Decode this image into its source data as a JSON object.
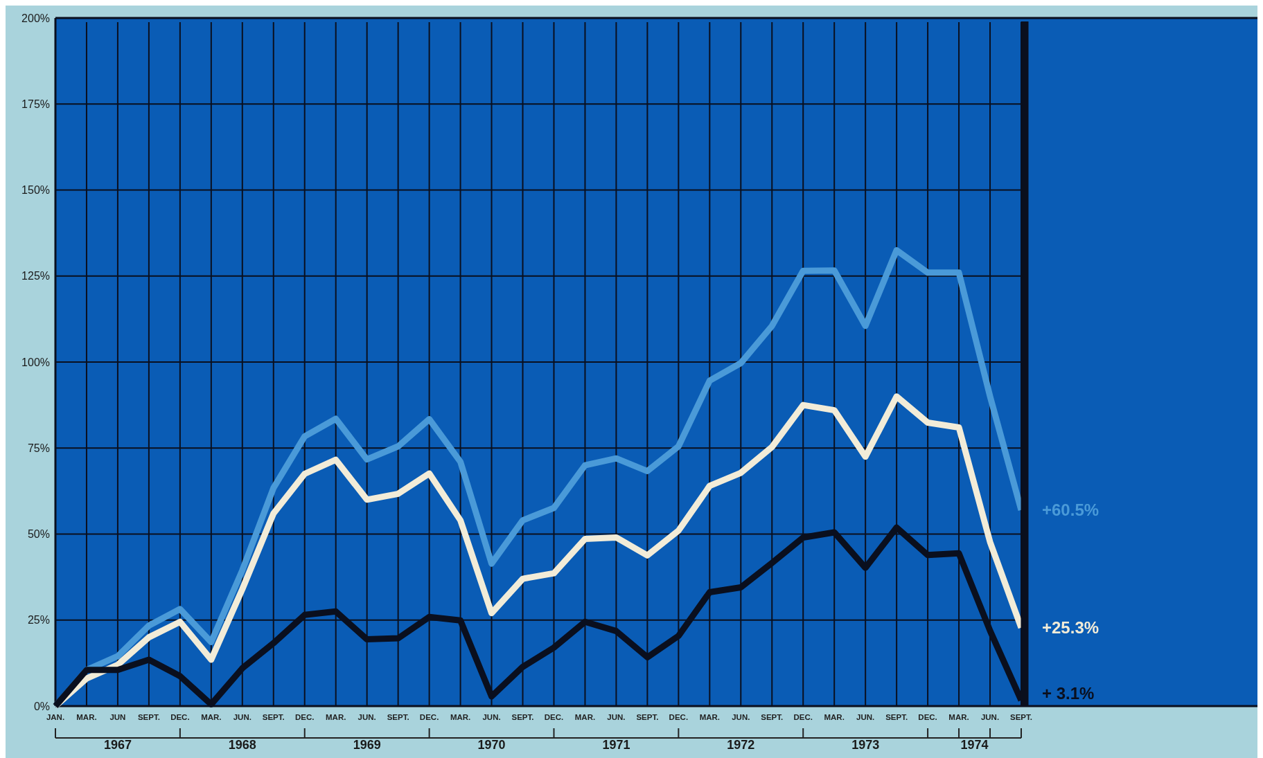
{
  "chart_data": {
    "type": "line",
    "categories": [
      "JAN.",
      "MAR.",
      "JUN",
      "SEPT.",
      "DEC.",
      "MAR.",
      "JUN.",
      "SEPT.",
      "DEC.",
      "MAR.",
      "JUN.",
      "SEPT.",
      "DEC.",
      "MAR.",
      "JUN.",
      "SEPT.",
      "DEC.",
      "MAR.",
      "JUN.",
      "SEPT.",
      "DEC.",
      "MAR.",
      "JUN.",
      "SEPT.",
      "DEC.",
      "MAR.",
      "JUN.",
      "SEPT.",
      "DEC.",
      "MAR.",
      "JUN.",
      "SEPT."
    ],
    "series": [
      {
        "color": "#4a9ad8",
        "values": [
          0,
          10.5,
          14.5,
          23.4,
          28.2,
          18.6,
          39.5,
          63.4,
          78.4,
          83.5,
          71.7,
          75.5,
          83.4,
          71,
          41.4,
          54,
          57.6,
          70,
          72,
          68.3,
          75.5,
          94.6,
          99.7,
          110.5,
          126.5,
          126.6,
          110.5,
          132.5,
          126,
          126,
          90,
          57
        ]
      },
      {
        "color": "#f2ecd8",
        "values": [
          0,
          8,
          12,
          20,
          24.5,
          13.5,
          34,
          56,
          67.5,
          71.6,
          60,
          61.7,
          67.6,
          54,
          27,
          37,
          38.6,
          48.6,
          49,
          43.8,
          51,
          64,
          67.8,
          75.3,
          87.5,
          86,
          72.5,
          90,
          82.4,
          81,
          47.7,
          22.8
        ]
      },
      {
        "color": "#0a0f1e",
        "values": [
          0,
          10.5,
          10.5,
          13.5,
          8.7,
          0.5,
          11,
          18.3,
          26.5,
          27.5,
          19.4,
          19.7,
          25.9,
          24.9,
          2.8,
          11.4,
          17,
          24.5,
          21.8,
          14.2,
          20.4,
          33.1,
          34.5,
          41.6,
          49,
          50.5,
          40.2,
          51.9,
          43.9,
          44.4,
          21.9,
          1.7
        ]
      }
    ],
    "ylim": [
      0,
      200
    ],
    "yticks": [
      {
        "value": 0,
        "label": "0%"
      },
      {
        "value": 25,
        "label": "25%"
      },
      {
        "value": 50,
        "label": "50%"
      },
      {
        "value": 75,
        "label": "75%"
      },
      {
        "value": 100,
        "label": "100%"
      },
      {
        "value": 125,
        "label": "125%"
      },
      {
        "value": 150,
        "label": "150%"
      },
      {
        "value": 175,
        "label": "175%"
      },
      {
        "value": 200,
        "label": "200%"
      }
    ],
    "grid": true,
    "line_style": "solid",
    "annotations": [
      "1967",
      "1968",
      "1969",
      "1970",
      "1971",
      "1972",
      "1973",
      "1974",
      "+60.5%",
      "+25.3%",
      "+ 3.1%"
    ]
  }
}
